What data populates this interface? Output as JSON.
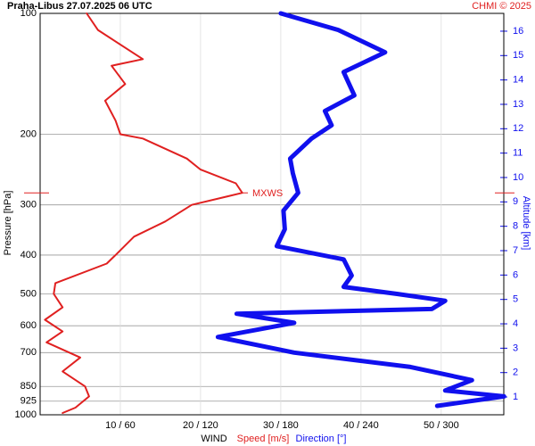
{
  "chart_data": {
    "type": "profile",
    "title": "Praha-Libus   27.07.2025 06 UTC",
    "source": "CHMI © 2025",
    "ylabel": "Pressure [hPa]",
    "y2label": "Altitude [km]",
    "xlabel": "WIND",
    "ylog": true,
    "ylim": [
      1000,
      100
    ],
    "yticks": [
      100,
      200,
      300,
      400,
      500,
      600,
      700,
      850,
      925,
      1000
    ],
    "y2lim": [
      0.27,
      16.73
    ],
    "y2ticks": [
      1,
      2,
      3,
      4,
      5,
      6,
      7,
      8,
      9,
      10,
      11,
      12,
      13,
      14,
      15,
      16
    ],
    "xlim": [
      0,
      57.8
    ],
    "x2lim": [
      0,
      346.8
    ],
    "xticks": [
      {
        "value": 10,
        "label": "10 / 60"
      },
      {
        "value": 20,
        "label": "20 / 120"
      },
      {
        "value": 30,
        "label": "30 / 180"
      },
      {
        "value": 40,
        "label": "40 / 240"
      },
      {
        "value": 50,
        "label": "50 / 300"
      }
    ],
    "grid": true,
    "annotations": [
      {
        "text": "MXWS",
        "y": 280,
        "color": "#e02020"
      }
    ],
    "series": [
      {
        "name": "Speed [m/s]",
        "color": "#e02020",
        "axis": "x",
        "y": [
          100,
          110,
          130,
          135,
          150,
          165,
          185,
          200,
          205,
          230,
          245,
          265,
          280,
          300,
          330,
          360,
          400,
          420,
          470,
          500,
          540,
          580,
          620,
          660,
          720,
          780,
          850,
          900,
          960,
          990
        ],
        "values": [
          5.8,
          7.2,
          12.8,
          8.9,
          10.6,
          8.1,
          9.4,
          10,
          12.8,
          18.3,
          20,
          24.4,
          25.2,
          18.9,
          15.6,
          11.7,
          9.4,
          8.3,
          1.9,
          1.7,
          2.8,
          0.6,
          2.8,
          0.8,
          5,
          2.8,
          5.6,
          6.1,
          4.4,
          2.8
        ]
      },
      {
        "name": "Direction [°]",
        "color": "#1010ee",
        "axis": "x2",
        "y": [
          100,
          110,
          125,
          140,
          160,
          175,
          190,
          205,
          230,
          250,
          280,
          310,
          345,
          380,
          410,
          450,
          480,
          500,
          520,
          545,
          560,
          590,
          640,
          700,
          760,
          820,
          870,
          900,
          950
        ],
        "values": [
          180,
          223,
          258,
          227,
          235,
          213,
          218,
          203,
          187,
          189,
          193,
          182,
          183,
          177,
          227,
          233,
          227,
          267,
          303,
          293,
          147,
          190,
          133,
          190,
          277,
          323,
          303,
          347,
          297
        ]
      }
    ]
  }
}
